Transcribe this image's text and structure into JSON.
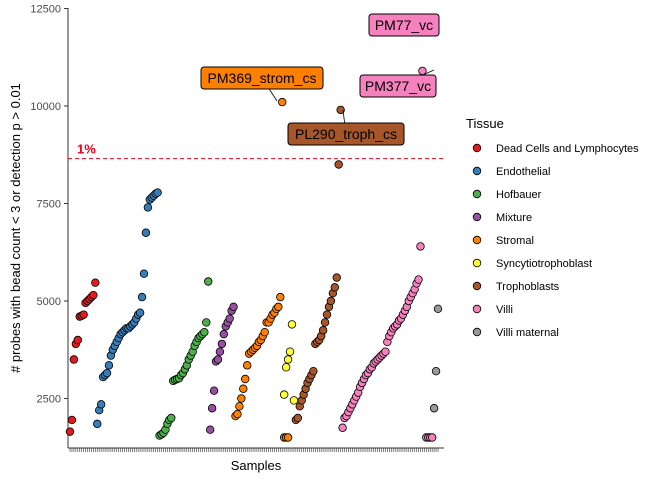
{
  "chart_data": {
    "type": "scatter",
    "xlabel": "Samples",
    "ylabel": "# probes with bead count < 3 or detection p > 0.01",
    "ylim": [
      1200,
      12500
    ],
    "yticks": [
      2500,
      5000,
      7500,
      10000,
      12500
    ],
    "x_tick_labels_shown": false,
    "grid": false,
    "legend": {
      "title": "Tissue",
      "position": "right"
    },
    "reference_line": {
      "y": 8650,
      "label": "1%",
      "color": "#e8001c",
      "style": "dashed"
    },
    "series": [
      {
        "name": "Dead Cells and Lymphocytes",
        "color": "#e41a1c",
        "x": [
          1,
          2,
          3,
          4,
          5,
          6,
          7,
          8,
          9,
          10,
          11,
          12,
          13,
          14
        ],
        "y": [
          1650,
          1950,
          3500,
          3900,
          4000,
          4600,
          4620,
          4650,
          4950,
          5000,
          5050,
          5100,
          5150,
          5470
        ]
      },
      {
        "name": "Endothelial",
        "color": "#377eb8",
        "x": [
          15,
          16,
          17,
          18,
          19,
          20,
          21,
          22,
          23,
          24,
          25,
          26,
          27,
          28,
          29,
          30,
          31,
          32,
          33,
          34,
          35,
          36,
          37,
          38,
          39,
          40,
          41,
          42,
          43,
          44,
          45,
          46
        ],
        "y": [
          1850,
          2200,
          2350,
          3050,
          3100,
          3150,
          3350,
          3600,
          3750,
          3850,
          3950,
          4050,
          4150,
          4200,
          4250,
          4300,
          4300,
          4350,
          4400,
          4450,
          4550,
          4650,
          4700,
          5100,
          5700,
          6750,
          7400,
          7600,
          7650,
          7700,
          7750,
          7780
        ]
      },
      {
        "name": "Hofbauer",
        "color": "#4daf4a",
        "x": [
          47,
          48,
          49,
          50,
          51,
          52,
          53,
          54,
          55,
          56,
          57,
          58,
          59,
          60,
          61,
          62,
          63,
          64,
          65,
          66,
          67,
          68,
          69,
          70,
          71,
          72
        ],
        "y": [
          1550,
          1580,
          1620,
          1700,
          1850,
          1950,
          2000,
          2950,
          2980,
          3000,
          3020,
          3100,
          3150,
          3250,
          3350,
          3500,
          3600,
          3700,
          3850,
          3950,
          4050,
          4100,
          4150,
          4200,
          4450,
          5500
        ]
      },
      {
        "name": "Mixture",
        "color": "#984ea3",
        "x": [
          73,
          74,
          75,
          76,
          77,
          78,
          79,
          80,
          81,
          82,
          83,
          84,
          85
        ],
        "y": [
          1700,
          2250,
          2700,
          3450,
          3500,
          3700,
          3900,
          4150,
          4350,
          4450,
          4550,
          4750,
          4850
        ]
      },
      {
        "name": "Stromal",
        "color": "#ff7f00",
        "x": [
          86,
          87,
          88,
          89,
          90,
          91,
          92,
          93,
          94,
          95,
          96,
          97,
          98,
          99,
          100,
          101,
          102,
          103,
          104,
          105,
          106,
          107,
          108,
          109,
          110,
          111,
          112,
          113
        ],
        "y": [
          2050,
          2100,
          2300,
          2500,
          2750,
          3000,
          3350,
          3650,
          3700,
          3750,
          3800,
          3850,
          3950,
          4000,
          4100,
          4200,
          4450,
          4450,
          4550,
          4650,
          4700,
          4800,
          4850,
          5100,
          10100,
          1500,
          1500,
          1500
        ]
      },
      {
        "name": "Syncytiotrophoblast",
        "color": "#ffff33",
        "x": [
          111,
          112,
          113,
          114,
          115,
          116
        ],
        "y": [
          2600,
          3300,
          3500,
          3700,
          4400,
          2450
        ]
      },
      {
        "name": "Trophoblasts",
        "color": "#a65628",
        "x": [
          117,
          118,
          119,
          120,
          121,
          122,
          123,
          124,
          125,
          126,
          127,
          128,
          129,
          130,
          131,
          132,
          133,
          134,
          135,
          136,
          137,
          138,
          139,
          140
        ],
        "y": [
          1950,
          2000,
          2300,
          2450,
          2600,
          2750,
          2900,
          3000,
          3100,
          3200,
          3900,
          3950,
          4000,
          4100,
          4250,
          4450,
          4650,
          4850,
          5000,
          5200,
          5350,
          5600,
          8500,
          9900
        ]
      },
      {
        "name": "Villi",
        "color": "#f781bf",
        "x": [
          141,
          142,
          143,
          144,
          145,
          146,
          147,
          148,
          149,
          150,
          151,
          152,
          153,
          154,
          155,
          156,
          157,
          158,
          159,
          160,
          161,
          162,
          163,
          164,
          165,
          166,
          167,
          168,
          169,
          170,
          171,
          172,
          173,
          174,
          175,
          176,
          177,
          178,
          179,
          180,
          181,
          182,
          183,
          184,
          185,
          186,
          187
        ],
        "y": [
          1750,
          2000,
          2050,
          2150,
          2250,
          2350,
          2450,
          2550,
          2650,
          2800,
          2900,
          3000,
          3100,
          3150,
          3250,
          3300,
          3400,
          3450,
          3500,
          3550,
          3600,
          3650,
          3700,
          3950,
          4100,
          4200,
          4300,
          4350,
          4400,
          4500,
          4550,
          4650,
          4750,
          4850,
          5000,
          5100,
          5200,
          5300,
          5450,
          5550,
          6400,
          10900,
          12100,
          1500,
          1500,
          1500,
          1500
        ]
      },
      {
        "name": "Villi maternal",
        "color": "#999999",
        "x": [
          188,
          189,
          190
        ],
        "y": [
          2250,
          3200,
          4800
        ]
      }
    ],
    "annotations": [
      {
        "label": "PM77_vc",
        "color": "#f781bf"
      },
      {
        "label": "PM369_strom_cs",
        "color": "#ff7f00"
      },
      {
        "label": "PM377_vc",
        "color": "#f781bf"
      },
      {
        "label": "PL290_troph_cs",
        "color": "#a65628"
      }
    ]
  }
}
